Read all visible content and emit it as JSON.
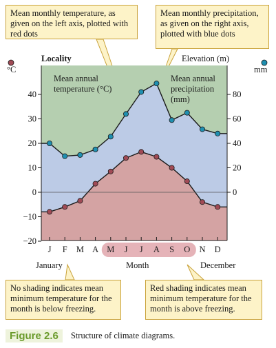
{
  "callouts": {
    "temperature": "Mean monthly temperature, as given on the left axis, plotted with red dots",
    "precipitation": "Mean monthly precipitation, as given on the right axis, plotted with blue dots",
    "below_freezing": "No shading indicates mean minimum temperature for the month is below freezing.",
    "above_freezing": "Red shading indicates mean minimum temperature for the month is above freezing."
  },
  "diagram": {
    "locality_label": "Locality",
    "elevation_label": "Elevation (m)",
    "left_unit": "°C",
    "right_unit": "mm",
    "temp_label_line1": "Mean annual",
    "temp_label_line2": "temperature (°C)",
    "precip_label_line1": "Mean annual",
    "precip_label_line2": "precipitation",
    "precip_label_line3": "(mm)",
    "x_axis_title": "Month",
    "january_label": "January",
    "december_label": "December",
    "months": [
      "J",
      "F",
      "M",
      "A",
      "M",
      "J",
      "J",
      "A",
      "S",
      "O",
      "N",
      "D"
    ],
    "left_ticks": [
      "−20",
      "−10",
      "0",
      "10",
      "20",
      "30",
      "40"
    ],
    "right_ticks": [
      "0",
      "20",
      "40",
      "60",
      "80"
    ],
    "temperature_c": [
      -8,
      -6,
      -3.5,
      3.5,
      8.5,
      14,
      16.5,
      14.5,
      10,
      4.5,
      -4,
      -6
    ],
    "precipitation_mm": [
      40,
      29.5,
      30.5,
      35,
      45.5,
      64,
      82,
      89,
      59,
      65,
      51.5,
      48
    ],
    "highlighted_months": [
      4,
      5,
      6,
      7,
      8,
      9
    ],
    "colors": {
      "temperature_fill": "#d4a3a3",
      "precipitation_fill": "#bccbe6",
      "background_fill": "#b5cfb0",
      "temperature_dot": "#a04a55",
      "precipitation_dot": "#1f8fb0",
      "highlight": "#e5b3b8",
      "callout_bg": "#fdf3c8",
      "callout_border": "#c9a23a"
    }
  },
  "caption": {
    "figure": "Figure 2.6",
    "text": "Structure of climate diagrams."
  }
}
